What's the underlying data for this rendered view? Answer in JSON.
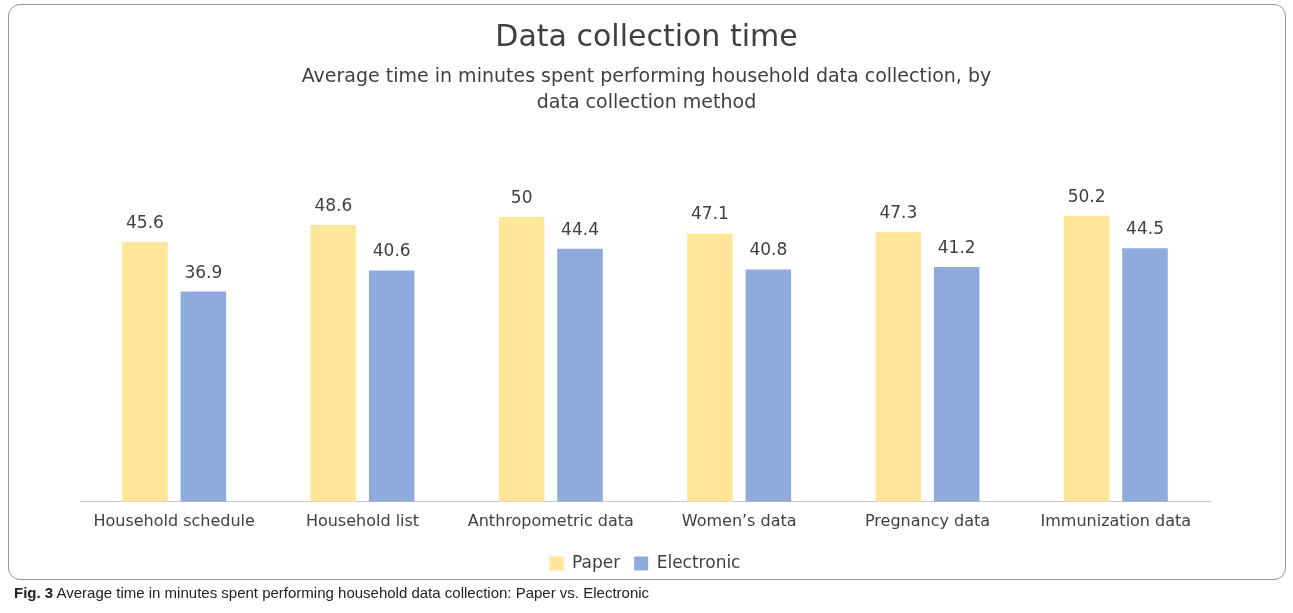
{
  "chart_data": {
    "type": "bar",
    "title": "Data collection time",
    "subtitle": "Average time in minutes spent performing household data collection, by data collection method",
    "categories": [
      "Household schedule",
      "Household list",
      "Anthropometric data",
      "Women’s data",
      "Pregnancy data",
      "Immunization data"
    ],
    "series": [
      {
        "name": "Paper",
        "color": "#ffe699",
        "values": [
          45.6,
          48.6,
          50,
          47.1,
          47.3,
          50.2
        ]
      },
      {
        "name": "Electronic",
        "color": "#8faadc",
        "values": [
          36.9,
          40.6,
          44.4,
          40.8,
          41.2,
          44.5
        ]
      }
    ],
    "data_labels": true,
    "grid": false,
    "legend": "bottom",
    "annotations": [
      "Fig. 3 Average time in minutes spent performing household data collection: Paper vs. Electronic"
    ]
  }
}
